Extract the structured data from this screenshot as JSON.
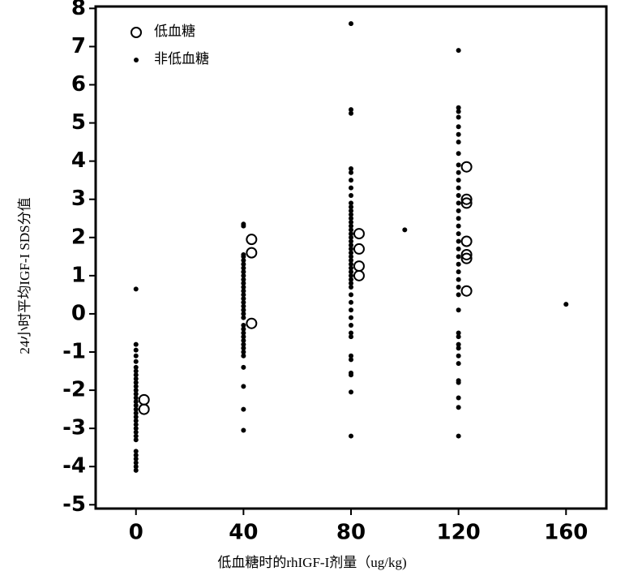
{
  "chart_data": {
    "type": "scatter",
    "x_label": "低血糖时的rhIGF-I剂量（ug/kg)",
    "y_label": "24小时平均IGF-I SDS分值",
    "xlim": [
      -15,
      175
    ],
    "xticks": [
      0,
      40,
      80,
      120,
      160
    ],
    "ylim": [
      -5.1,
      8.05
    ],
    "yticks": [
      -5,
      -4,
      -3,
      -2,
      -1,
      0,
      1,
      2,
      3,
      4,
      5,
      6,
      7,
      8
    ],
    "legend": "upper-left",
    "series": [
      {
        "name": "低血糖",
        "color": "#000000",
        "marker": "open",
        "x": [
          3,
          3,
          43,
          43,
          43,
          83,
          83,
          83,
          83,
          123,
          123,
          123,
          123,
          123,
          123,
          123
        ],
        "y": [
          -2.25,
          -2.5,
          1.95,
          1.6,
          -0.25,
          2.1,
          1.7,
          1.25,
          1.0,
          3.85,
          3.0,
          2.9,
          1.9,
          1.55,
          1.45,
          0.6
        ]
      },
      {
        "name": "非低血糖",
        "color": "#000000",
        "marker": "filled",
        "x": [
          0,
          0,
          0,
          0,
          0,
          0,
          0,
          0,
          0,
          0,
          0,
          0,
          0,
          0,
          0,
          0,
          0,
          0,
          0,
          0,
          0,
          0,
          0,
          0,
          0,
          0,
          0,
          0,
          0,
          0,
          0,
          40,
          40,
          40,
          40,
          40,
          40,
          40,
          40,
          40,
          40,
          40,
          40,
          40,
          40,
          40,
          40,
          40,
          40,
          40,
          40,
          40,
          40,
          40,
          40,
          40,
          40,
          40,
          40,
          40,
          40,
          40,
          40,
          40,
          80,
          80,
          80,
          80,
          80,
          80,
          80,
          80,
          80,
          80,
          80,
          80,
          80,
          80,
          80,
          80,
          80,
          80,
          80,
          80,
          80,
          80,
          80,
          80,
          80,
          80,
          80,
          80,
          80,
          80,
          80,
          80,
          80,
          80,
          80,
          80,
          80,
          80,
          80,
          80,
          80,
          80,
          80,
          80,
          100,
          120,
          120,
          120,
          120,
          120,
          120,
          120,
          120,
          120,
          120,
          120,
          120,
          120,
          120,
          120,
          120,
          120,
          120,
          120,
          120,
          120,
          120,
          120,
          120,
          120,
          120,
          120,
          120,
          120,
          120,
          120,
          120,
          120,
          120,
          120,
          120,
          120,
          120,
          160
        ],
        "y": [
          0.65,
          -0.8,
          -0.95,
          -1.1,
          -1.25,
          -1.4,
          -1.5,
          -1.6,
          -1.7,
          -1.8,
          -1.9,
          -2.0,
          -2.1,
          -2.2,
          -2.3,
          -2.4,
          -2.5,
          -2.6,
          -2.7,
          -2.8,
          -2.9,
          -3.0,
          -3.1,
          -3.2,
          -3.3,
          -3.6,
          -3.7,
          -3.8,
          -3.9,
          -4.0,
          -4.1,
          2.35,
          2.3,
          1.55,
          1.5,
          1.4,
          1.3,
          1.2,
          1.1,
          1.0,
          0.9,
          0.8,
          0.7,
          0.6,
          0.5,
          0.4,
          0.3,
          0.2,
          0.1,
          0.0,
          -0.1,
          -0.3,
          -0.4,
          -0.5,
          -0.6,
          -0.7,
          -0.8,
          -0.9,
          -1.0,
          -1.1,
          -1.4,
          -1.9,
          -2.5,
          -3.05,
          7.6,
          5.35,
          5.25,
          3.8,
          3.7,
          3.5,
          3.3,
          3.1,
          2.9,
          2.8,
          2.7,
          2.6,
          2.5,
          2.4,
          2.3,
          2.2,
          2.1,
          2.0,
          1.9,
          1.8,
          1.7,
          1.6,
          1.5,
          1.4,
          1.3,
          1.2,
          1.1,
          1.0,
          0.9,
          0.8,
          0.7,
          0.5,
          0.3,
          0.1,
          -0.1,
          -0.3,
          -0.5,
          -0.6,
          -1.1,
          -1.2,
          -1.55,
          -1.6,
          -2.05,
          -3.2,
          2.2,
          6.9,
          5.4,
          5.3,
          5.15,
          4.9,
          4.7,
          4.5,
          4.2,
          3.9,
          3.7,
          3.5,
          3.3,
          3.1,
          2.9,
          2.7,
          2.5,
          2.3,
          2.1,
          1.9,
          1.7,
          1.5,
          1.3,
          1.1,
          0.9,
          0.7,
          0.5,
          0.1,
          -0.5,
          -0.6,
          -0.8,
          -0.9,
          -1.1,
          -1.3,
          -1.75,
          -1.8,
          -2.2,
          -2.45,
          -3.2,
          0.25
        ]
      }
    ]
  }
}
